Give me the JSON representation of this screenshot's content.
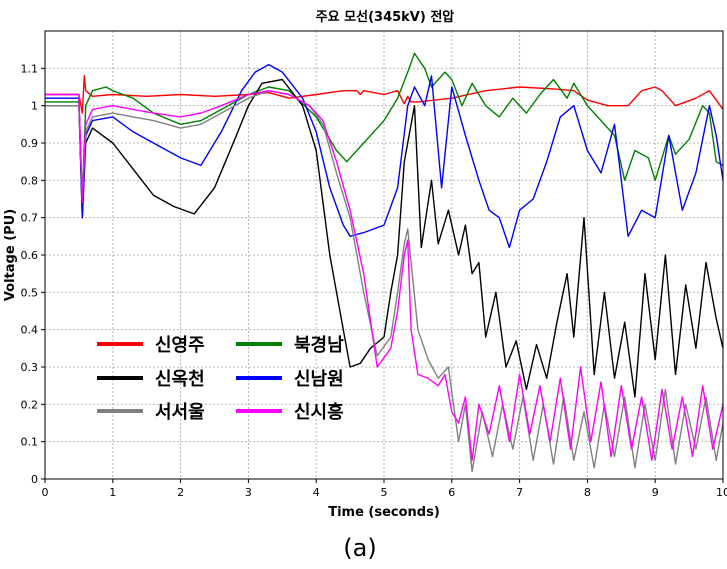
{
  "chart_data": {
    "type": "line",
    "title": "주요 모선(345kV) 전압",
    "xlabel": "Time (seconds)",
    "ylabel": "Voltage (PU)",
    "caption": "(a)",
    "xlim": [
      0,
      10
    ],
    "ylim": [
      0,
      1.2
    ],
    "x_ticks": [
      "0",
      "1",
      "2",
      "3",
      "4",
      "5",
      "6",
      "7",
      "8",
      "9",
      "10"
    ],
    "y_ticks": [
      "0",
      "0.1",
      "0.2",
      "0.3",
      "0.4",
      "0.5",
      "0.6",
      "0.7",
      "0.8",
      "0.9",
      "1",
      "1.1"
    ],
    "grid": true,
    "legend_position": "lower-left",
    "series": [
      {
        "name": "신영주",
        "color": "#ff0000",
        "x": [
          0,
          0.5,
          0.55,
          0.58,
          0.6,
          0.7,
          1.0,
          1.5,
          2.0,
          2.5,
          3.0,
          3.3,
          3.6,
          4.0,
          4.4,
          4.6,
          4.65,
          4.7,
          5.0,
          5.2,
          5.3,
          5.35,
          5.4,
          5.5,
          6.0,
          6.5,
          7.0,
          7.5,
          7.8,
          8.0,
          8.3,
          8.6,
          8.8,
          9.0,
          9.1,
          9.3,
          9.6,
          9.8,
          10.0
        ],
        "y": [
          1.03,
          1.03,
          0.98,
          1.08,
          1.04,
          1.025,
          1.03,
          1.025,
          1.03,
          1.025,
          1.03,
          1.035,
          1.02,
          1.03,
          1.04,
          1.04,
          1.03,
          1.04,
          1.03,
          1.04,
          1.005,
          1.025,
          1.01,
          1.01,
          1.02,
          1.04,
          1.05,
          1.045,
          1.04,
          1.015,
          1.0,
          1.0,
          1.04,
          1.05,
          1.04,
          1.0,
          1.02,
          1.04,
          0.99
        ]
      },
      {
        "name": "북경남",
        "color": "#008000",
        "x": [
          0,
          0.5,
          0.55,
          0.6,
          0.7,
          0.9,
          1.0,
          1.3,
          1.6,
          2.0,
          2.3,
          2.7,
          3.0,
          3.3,
          3.6,
          4.0,
          4.3,
          4.45,
          4.6,
          5.0,
          5.2,
          5.35,
          5.45,
          5.6,
          5.7,
          5.9,
          6.0,
          6.15,
          6.3,
          6.5,
          6.7,
          6.9,
          7.1,
          7.3,
          7.5,
          7.7,
          7.8,
          8.0,
          8.2,
          8.4,
          8.55,
          8.7,
          8.9,
          9.0,
          9.2,
          9.3,
          9.5,
          9.7,
          9.8,
          9.9,
          10.0
        ],
        "y": [
          1.01,
          1.01,
          0.75,
          1.0,
          1.04,
          1.05,
          1.04,
          1.02,
          0.98,
          0.95,
          0.96,
          1.0,
          1.03,
          1.05,
          1.04,
          0.97,
          0.88,
          0.85,
          0.88,
          0.96,
          1.02,
          1.09,
          1.14,
          1.1,
          1.05,
          1.09,
          1.07,
          1.0,
          1.06,
          1.0,
          0.97,
          1.02,
          0.98,
          1.03,
          1.07,
          1.02,
          1.06,
          1.0,
          0.96,
          0.92,
          0.8,
          0.88,
          0.86,
          0.8,
          0.92,
          0.87,
          0.91,
          1.0,
          0.98,
          0.85,
          0.84
        ]
      },
      {
        "name": "신옥천",
        "color": "#000000",
        "x": [
          0,
          0.5,
          0.55,
          0.6,
          0.7,
          1.0,
          1.3,
          1.6,
          1.9,
          2.2,
          2.5,
          2.8,
          3.0,
          3.2,
          3.5,
          3.8,
          4.0,
          4.2,
          4.4,
          4.5,
          4.65,
          4.8,
          5.0,
          5.1,
          5.2,
          5.3,
          5.45,
          5.55,
          5.7,
          5.8,
          5.95,
          6.1,
          6.2,
          6.3,
          6.4,
          6.5,
          6.65,
          6.8,
          6.95,
          7.1,
          7.25,
          7.4,
          7.55,
          7.7,
          7.8,
          7.95,
          8.1,
          8.25,
          8.4,
          8.55,
          8.7,
          8.85,
          9.0,
          9.15,
          9.3,
          9.45,
          9.6,
          9.75,
          9.9,
          10.0
        ],
        "y": [
          1.0,
          1.0,
          0.7,
          0.9,
          0.94,
          0.9,
          0.83,
          0.76,
          0.73,
          0.71,
          0.78,
          0.91,
          1.0,
          1.06,
          1.07,
          1.0,
          0.88,
          0.6,
          0.4,
          0.3,
          0.31,
          0.35,
          0.38,
          0.5,
          0.6,
          0.85,
          1.0,
          0.62,
          0.8,
          0.63,
          0.72,
          0.6,
          0.68,
          0.55,
          0.58,
          0.38,
          0.5,
          0.3,
          0.37,
          0.24,
          0.36,
          0.27,
          0.42,
          0.55,
          0.38,
          0.7,
          0.28,
          0.5,
          0.27,
          0.42,
          0.22,
          0.55,
          0.32,
          0.6,
          0.28,
          0.52,
          0.35,
          0.58,
          0.43,
          0.35
        ]
      },
      {
        "name": "신남원",
        "color": "#0000ff",
        "x": [
          0,
          0.5,
          0.55,
          0.6,
          0.7,
          1.0,
          1.3,
          1.6,
          2.0,
          2.3,
          2.6,
          2.9,
          3.1,
          3.3,
          3.5,
          3.8,
          4.0,
          4.2,
          4.4,
          4.5,
          4.7,
          5.0,
          5.2,
          5.35,
          5.45,
          5.6,
          5.7,
          5.85,
          6.0,
          6.2,
          6.4,
          6.55,
          6.7,
          6.85,
          7.0,
          7.2,
          7.4,
          7.6,
          7.8,
          8.0,
          8.2,
          8.4,
          8.6,
          8.8,
          9.0,
          9.2,
          9.4,
          9.6,
          9.8,
          9.9,
          10.0
        ],
        "y": [
          1.02,
          1.02,
          0.7,
          0.92,
          0.96,
          0.97,
          0.93,
          0.9,
          0.86,
          0.84,
          0.93,
          1.04,
          1.09,
          1.11,
          1.09,
          1.02,
          0.93,
          0.78,
          0.68,
          0.65,
          0.66,
          0.68,
          0.78,
          1.0,
          1.05,
          1.0,
          1.08,
          0.78,
          1.05,
          0.92,
          0.8,
          0.72,
          0.7,
          0.62,
          0.72,
          0.75,
          0.85,
          0.97,
          1.0,
          0.88,
          0.82,
          0.95,
          0.65,
          0.72,
          0.7,
          0.92,
          0.72,
          0.82,
          1.0,
          0.92,
          0.8
        ]
      },
      {
        "name": "서서울",
        "color": "#808080",
        "x": [
          0,
          0.5,
          0.55,
          0.6,
          0.7,
          1.0,
          1.3,
          1.6,
          2.0,
          2.3,
          2.6,
          3.0,
          3.3,
          3.6,
          3.9,
          4.1,
          4.3,
          4.5,
          4.7,
          4.9,
          5.1,
          5.2,
          5.3,
          5.35,
          5.5,
          5.65,
          5.8,
          5.95,
          6.1,
          6.2,
          6.3,
          6.45,
          6.6,
          6.75,
          6.9,
          7.05,
          7.2,
          7.35,
          7.5,
          7.65,
          7.8,
          7.95,
          8.1,
          8.25,
          8.4,
          8.55,
          8.7,
          8.85,
          9.0,
          9.15,
          9.3,
          9.45,
          9.6,
          9.75,
          9.9,
          10.0
        ],
        "y": [
          1.0,
          1.0,
          0.75,
          0.93,
          0.97,
          0.98,
          0.97,
          0.96,
          0.94,
          0.95,
          0.98,
          1.02,
          1.04,
          1.03,
          1.0,
          0.95,
          0.82,
          0.7,
          0.5,
          0.33,
          0.38,
          0.5,
          0.63,
          0.67,
          0.4,
          0.32,
          0.27,
          0.3,
          0.1,
          0.2,
          0.02,
          0.18,
          0.06,
          0.2,
          0.08,
          0.22,
          0.05,
          0.2,
          0.04,
          0.22,
          0.05,
          0.18,
          0.03,
          0.2,
          0.06,
          0.22,
          0.03,
          0.2,
          0.05,
          0.24,
          0.04,
          0.2,
          0.08,
          0.22,
          0.05,
          0.15
        ]
      },
      {
        "name": "신시흥",
        "color": "#ff00ff",
        "x": [
          0,
          0.5,
          0.55,
          0.6,
          0.7,
          1.0,
          1.3,
          1.6,
          2.0,
          2.3,
          2.6,
          3.0,
          3.3,
          3.6,
          3.9,
          4.1,
          4.3,
          4.5,
          4.7,
          4.9,
          5.1,
          5.2,
          5.3,
          5.35,
          5.4,
          5.5,
          5.65,
          5.8,
          5.9,
          6.0,
          6.1,
          6.2,
          6.3,
          6.4,
          6.55,
          6.7,
          6.85,
          7.0,
          7.15,
          7.3,
          7.45,
          7.6,
          7.75,
          7.9,
          8.05,
          8.2,
          8.35,
          8.5,
          8.65,
          8.8,
          8.95,
          9.1,
          9.25,
          9.4,
          9.55,
          9.7,
          9.85,
          10.0
        ],
        "y": [
          1.03,
          1.03,
          0.74,
          0.95,
          0.99,
          1.0,
          0.99,
          0.98,
          0.97,
          0.98,
          1.0,
          1.03,
          1.04,
          1.03,
          1.0,
          0.96,
          0.85,
          0.72,
          0.55,
          0.3,
          0.35,
          0.45,
          0.6,
          0.64,
          0.4,
          0.28,
          0.27,
          0.25,
          0.28,
          0.18,
          0.15,
          0.22,
          0.05,
          0.2,
          0.12,
          0.25,
          0.1,
          0.28,
          0.12,
          0.25,
          0.1,
          0.27,
          0.08,
          0.3,
          0.1,
          0.26,
          0.06,
          0.25,
          0.08,
          0.22,
          0.05,
          0.24,
          0.08,
          0.22,
          0.06,
          0.25,
          0.08,
          0.2
        ]
      }
    ]
  }
}
